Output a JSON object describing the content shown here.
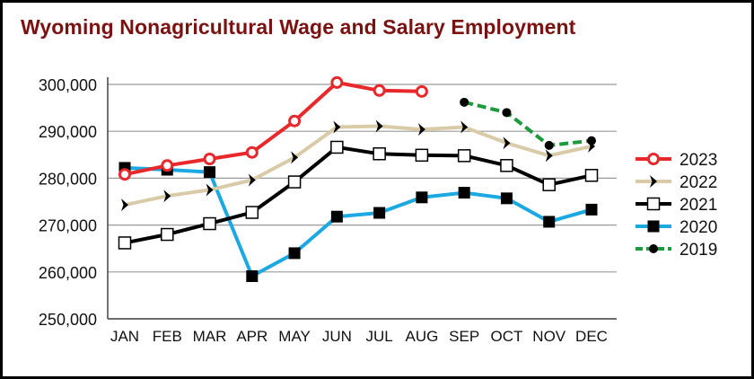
{
  "chart_data": {
    "type": "line",
    "title": "Wyoming Nonagricultural Wage and Salary Employment",
    "xlabel": "",
    "ylabel": "",
    "categories": [
      "JAN",
      "FEB",
      "MAR",
      "APR",
      "MAY",
      "JUN",
      "JUL",
      "AUG",
      "SEP",
      "OCT",
      "NOV",
      "DEC"
    ],
    "ylim": [
      250000,
      300000
    ],
    "yticks": [
      250000,
      260000,
      270000,
      280000,
      290000,
      300000
    ],
    "ytick_labels": [
      "250,000",
      "260,000",
      "270,000",
      "280,000",
      "290,000",
      "300,000"
    ],
    "grid": "horizontal",
    "legend_position": "right",
    "series": [
      {
        "name": "2019",
        "color": "#1e9a3c",
        "line_style": "dashed",
        "marker": "filled-circle",
        "values": [
          null,
          null,
          null,
          null,
          null,
          null,
          null,
          null,
          296200,
          294000,
          287000,
          288000
        ]
      },
      {
        "name": "2020",
        "color": "#1ca8e0",
        "line_style": "solid",
        "marker": "filled-square",
        "values": [
          282200,
          281800,
          281300,
          259100,
          264000,
          271800,
          272600,
          275900,
          276900,
          275700,
          270700,
          273300
        ]
      },
      {
        "name": "2021",
        "color": "#000000",
        "line_style": "solid",
        "marker": "open-square",
        "values": [
          266200,
          268000,
          270300,
          272700,
          279200,
          286600,
          285200,
          284900,
          284800,
          282700,
          278600,
          280600
        ]
      },
      {
        "name": "2022",
        "color": "#d9cba7",
        "line_style": "solid",
        "marker": "arrowhead",
        "values": [
          274300,
          276200,
          277500,
          279600,
          284400,
          290900,
          291100,
          290400,
          290900,
          287500,
          284800,
          286800
        ]
      },
      {
        "name": "2023",
        "color": "#e8282a",
        "line_style": "solid",
        "marker": "open-circle",
        "values": [
          280800,
          282700,
          284100,
          285500,
          292200,
          300400,
          298700,
          298500,
          null,
          null,
          null,
          null
        ]
      }
    ],
    "legend_order": [
      "2023",
      "2022",
      "2021",
      "2020",
      "2019"
    ]
  }
}
